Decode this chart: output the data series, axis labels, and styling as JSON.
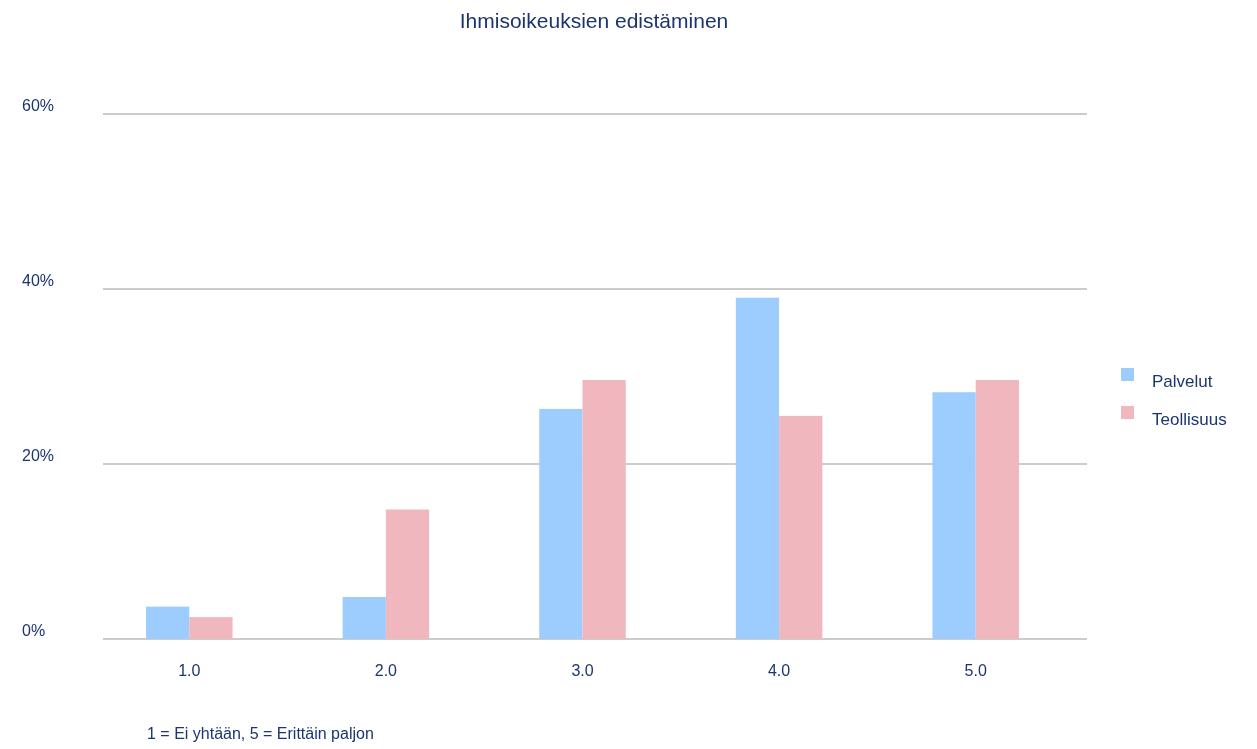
{
  "chart_data": {
    "type": "bar",
    "title": "Ihmisoikeuksien edistäminen",
    "xlabel": "1 = Ei yhtään, 5 = Erittäin paljon",
    "categories": [
      "1.0",
      "2.0",
      "3.0",
      "4.0",
      "5.0"
    ],
    "series": [
      {
        "name": "Palvelut",
        "color": "#9ccdfe",
        "values": [
          3.7,
          4.8,
          26.3,
          39.0,
          28.2
        ]
      },
      {
        "name": "Teollisuus",
        "color": "#f0b7be",
        "values": [
          2.5,
          14.8,
          29.6,
          25.5,
          29.6
        ]
      }
    ],
    "ylim": [
      0,
      60
    ],
    "yticks": [
      {
        "value": 0,
        "label": "0%"
      },
      {
        "value": 20,
        "label": "20%"
      },
      {
        "value": 40,
        "label": "40%"
      },
      {
        "value": 60,
        "label": "60%"
      }
    ],
    "grid": "y",
    "legend": "right"
  }
}
